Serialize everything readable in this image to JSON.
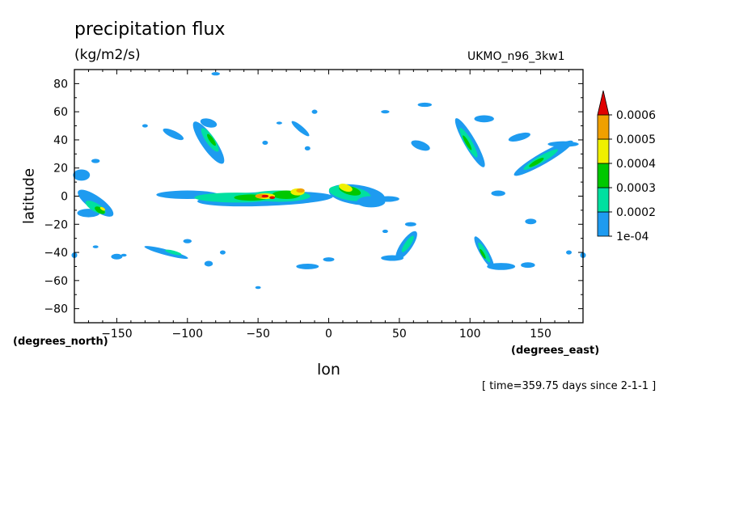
{
  "chart_data": {
    "type": "heatmap",
    "title": "precipitation flux",
    "units": "(kg/m2/s)",
    "model": "UKMO_n96_3kw1",
    "xlabel": "lon",
    "ylabel": "latitude",
    "xunits": "(degrees_east)",
    "yunits": "(degrees_north)",
    "timestamp": "[ time=359.75 days since 2-1-1 ]",
    "xlim": [
      -180,
      180
    ],
    "ylim": [
      -90,
      90
    ],
    "xticks": [
      -150,
      -100,
      -50,
      0,
      50,
      100,
      150
    ],
    "xtick_labels": [
      "−150",
      "−100",
      "−50",
      "0",
      "50",
      "100",
      "150"
    ],
    "yticks": [
      80,
      60,
      40,
      20,
      0,
      -20,
      -40,
      -60,
      -80
    ],
    "ytick_labels": [
      "80",
      "60",
      "40",
      "20",
      "0",
      "−20",
      "−40",
      "−60",
      "−80"
    ],
    "colorbar": {
      "levels": [
        "1e-04",
        "0.0002",
        "0.0003",
        "0.0004",
        "0.0005",
        "0.0006"
      ],
      "colors": [
        "#1e9bf0",
        "#00e0a0",
        "#00c800",
        "#f0f000",
        "#f0a000",
        "#e00000"
      ]
    },
    "features": [
      {
        "name": "equatorial-band",
        "lon": [
          -140,
          50
        ],
        "lat": [
          -8,
          8
        ],
        "peak_level": 5
      },
      {
        "name": "western-edge-band",
        "lon": [
          -180,
          -145
        ],
        "lat": [
          -20,
          18
        ],
        "peak_level": 4
      },
      {
        "name": "north-pacific-band",
        "lon": [
          -95,
          -75
        ],
        "lat": [
          20,
          55
        ],
        "peak_level": 3
      },
      {
        "name": "north-atlantic-arc",
        "lon": [
          -40,
          -10
        ],
        "lat": [
          35,
          55
        ],
        "peak_level": 1
      },
      {
        "name": "north-east-band",
        "lon": [
          90,
          115
        ],
        "lat": [
          20,
          57
        ],
        "peak_level": 4
      },
      {
        "name": "far-north-east-band",
        "lon": [
          130,
          178
        ],
        "lat": [
          15,
          38
        ],
        "peak_level": 4
      },
      {
        "name": "south-band-1",
        "lon": [
          45,
          70
        ],
        "lat": [
          -45,
          -25
        ],
        "peak_level": 2
      },
      {
        "name": "south-band-2",
        "lon": [
          100,
          125
        ],
        "lat": [
          -52,
          -25
        ],
        "peak_level": 3
      },
      {
        "name": "south-west-band",
        "lon": [
          -130,
          -100
        ],
        "lat": [
          -45,
          -32
        ],
        "peak_level": 2
      }
    ]
  }
}
